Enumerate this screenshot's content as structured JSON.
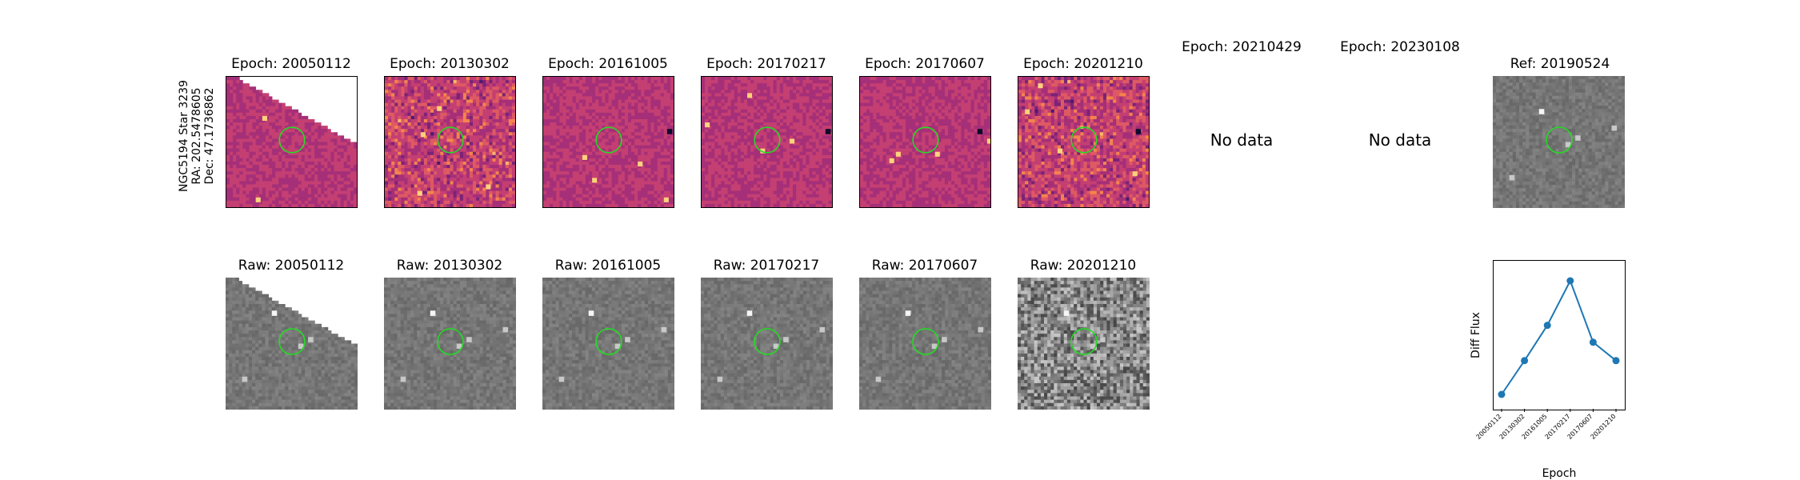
{
  "row_label": [
    "NGC5194 Star 3239",
    "RA: 202.5478605",
    "Dec: 47.1736862"
  ],
  "diff_titles": [
    "Epoch: 20050112",
    "Epoch: 20130302",
    "Epoch: 20161005",
    "Epoch: 20170217",
    "Epoch: 20170607",
    "Epoch: 20201210",
    "Epoch: 20210429",
    "Epoch: 20230108"
  ],
  "ref_title": "Ref: 20190524",
  "no_data_text": "No data",
  "raw_titles": [
    "Raw: 20050112",
    "Raw: 20130302",
    "Raw: 20161005",
    "Raw: 20170217",
    "Raw: 20170607",
    "Raw: 20201210"
  ],
  "colors": {
    "diff_palette": [
      "#4d1a6e",
      "#7a2377",
      "#a52f78",
      "#c43f72",
      "#de5a62",
      "#f3844d",
      "#fcb76a"
    ],
    "circle": "#22dd22",
    "line": "#1f77b4"
  },
  "chart_data": {
    "type": "line",
    "x": [
      "20050112",
      "20130302",
      "20161005",
      "20170217",
      "20170607",
      "20201210"
    ],
    "values": [
      0.0,
      0.22,
      0.45,
      0.74,
      0.34,
      0.22
    ],
    "xlabel": "Epoch",
    "ylabel": "Diff Flux",
    "markers": true,
    "grid": false
  }
}
